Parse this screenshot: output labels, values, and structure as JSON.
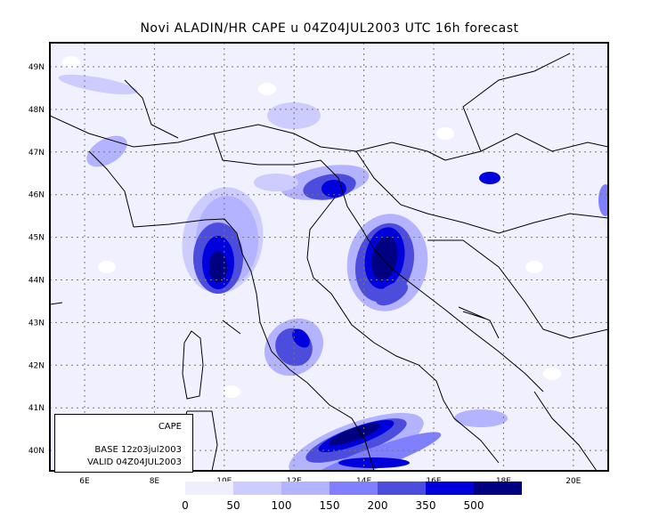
{
  "title": "Novi ALADIN/HR CAPE u 04Z04JUL2003 UTC 16h forecast",
  "lat_labels": [
    "49N",
    "48N",
    "47N",
    "46N",
    "45N",
    "44N",
    "43N",
    "42N",
    "41N",
    "40N"
  ],
  "lon_labels": [
    "6E",
    "8E",
    "10E",
    "12E",
    "14E",
    "16E",
    "18E",
    "20E"
  ],
  "info_box": {
    "field": "CAPE",
    "base": "BASE 12z03jul2003",
    "valid": "VALID 04Z04JUL2003"
  },
  "legend": {
    "colors": [
      "#eeeeff",
      "#ccccff",
      "#b3b3ff",
      "#8080ff",
      "#4d4ddd",
      "#0000dd",
      "#000080"
    ],
    "labels": [
      "0",
      "50",
      "100",
      "150",
      "200",
      "350",
      "500"
    ]
  }
}
